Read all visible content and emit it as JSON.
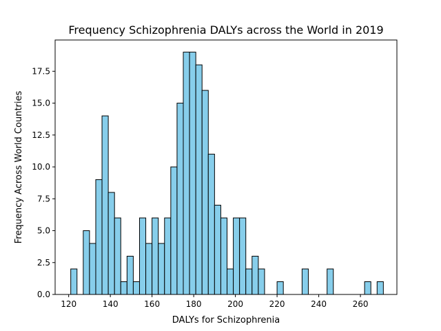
{
  "chart_data": {
    "type": "bar",
    "title": "Frequency Schizophrenia DALYs across the World in 2019",
    "xlabel": "DALYs for Schizophrenia",
    "ylabel": "Frequency Across World Countries",
    "xlim": [
      113.5,
      277.5
    ],
    "ylim": [
      0,
      19.95
    ],
    "xticks": [
      120,
      140,
      160,
      180,
      200,
      220,
      240,
      260
    ],
    "yticks": [
      "0.0",
      "2.5",
      "5.0",
      "7.5",
      "10.0",
      "12.5",
      "15.0",
      "17.5"
    ],
    "bin_start": 121.0,
    "bin_width": 3.0,
    "counts": [
      2,
      0,
      5,
      4,
      9,
      14,
      8,
      6,
      1,
      3,
      1,
      6,
      4,
      6,
      4,
      6,
      10,
      15,
      19,
      19,
      18,
      16,
      11,
      7,
      6,
      2,
      6,
      6,
      2,
      3,
      2,
      0,
      0,
      1,
      0,
      0,
      0,
      2,
      0,
      0,
      0,
      2,
      0,
      0,
      0,
      0,
      0,
      1,
      0,
      1
    ],
    "colors": {
      "bar_fill": "#87ceeb",
      "bar_edge": "#000000"
    },
    "grid": false
  }
}
